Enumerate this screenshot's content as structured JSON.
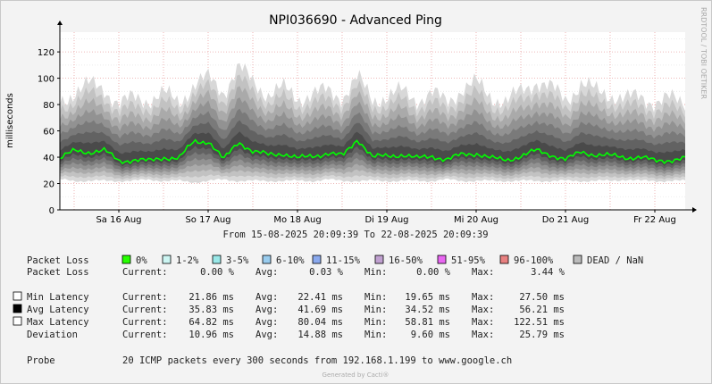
{
  "chart_data": {
    "type": "area",
    "title": "NPI036690 - Advanced Ping",
    "ylabel": "milliseconds",
    "ylim": [
      0,
      135
    ],
    "yticks": [
      0,
      20,
      40,
      60,
      80,
      100,
      120
    ],
    "xlim": [
      "2025-08-15 20:09:39",
      "2025-08-22 20:09:39"
    ],
    "xticks": [
      {
        "label": "Sa 16 Aug",
        "at": "2025-08-16 12:00"
      },
      {
        "label": "So 17 Aug",
        "at": "2025-08-17 12:00"
      },
      {
        "label": "Mo 18 Aug",
        "at": "2025-08-18 12:00"
      },
      {
        "label": "Di 19 Aug",
        "at": "2025-08-19 12:00"
      },
      {
        "label": "Mi 20 Aug",
        "at": "2025-08-20 12:00"
      },
      {
        "label": "Do 21 Aug",
        "at": "2025-08-21 12:00"
      },
      {
        "label": "Fr 22 Aug",
        "at": "2025-08-22 12:00"
      }
    ],
    "grid": true,
    "side_label": "RRDTOOL / TOBI OETIKER",
    "range_text": "From 15-08-2025 20:09:39 To 22-08-2025 20:09:39",
    "series": [
      {
        "name": "Avg Latency",
        "color": "#00ff00",
        "x": [
          "2025-08-15 20:00",
          "2025-08-16 00:00",
          "2025-08-16 04:00",
          "2025-08-16 08:00",
          "2025-08-16 12:00",
          "2025-08-16 16:00",
          "2025-08-16 20:00",
          "2025-08-17 00:00",
          "2025-08-17 04:00",
          "2025-08-17 08:00",
          "2025-08-17 12:00",
          "2025-08-17 16:00",
          "2025-08-17 20:00",
          "2025-08-18 00:00",
          "2025-08-18 04:00",
          "2025-08-18 08:00",
          "2025-08-18 12:00",
          "2025-08-18 16:00",
          "2025-08-18 20:00",
          "2025-08-19 00:00",
          "2025-08-19 04:00",
          "2025-08-19 08:00",
          "2025-08-19 12:00",
          "2025-08-19 16:00",
          "2025-08-19 20:00",
          "2025-08-20 00:00",
          "2025-08-20 04:00",
          "2025-08-20 08:00",
          "2025-08-20 12:00",
          "2025-08-20 16:00",
          "2025-08-20 20:00",
          "2025-08-21 00:00",
          "2025-08-21 04:00",
          "2025-08-21 08:00",
          "2025-08-21 12:00",
          "2025-08-21 16:00",
          "2025-08-21 20:00",
          "2025-08-22 00:00",
          "2025-08-22 04:00",
          "2025-08-22 08:00",
          "2025-08-22 12:00",
          "2025-08-22 16:00",
          "2025-08-22 20:00"
        ],
        "values": [
          39,
          45,
          44,
          45,
          37,
          38,
          37,
          40,
          39,
          52,
          52,
          38,
          52,
          44,
          42,
          43,
          39,
          41,
          43,
          41,
          54,
          40,
          41,
          42,
          39,
          41,
          38,
          42,
          43,
          39,
          38,
          41,
          45,
          42,
          38,
          44,
          42,
          41,
          40,
          40,
          37,
          38,
          39
        ]
      },
      {
        "name": "Min Latency",
        "color": "#ffffff",
        "values": [
          23,
          22,
          22,
          22,
          22,
          22,
          23,
          22,
          22,
          21,
          22,
          23,
          22,
          22,
          22,
          22,
          22,
          22,
          23,
          22,
          22,
          22,
          22,
          22,
          22,
          22,
          23,
          22,
          22,
          22,
          22,
          22,
          22,
          22,
          22,
          22,
          22,
          22,
          23,
          22,
          22,
          22,
          22
        ]
      },
      {
        "name": "Max Latency",
        "color": "#ffffff",
        "values": [
          82,
          90,
          95,
          92,
          80,
          85,
          84,
          88,
          82,
          95,
          100,
          90,
          108,
          97,
          88,
          92,
          85,
          88,
          90,
          86,
          100,
          84,
          86,
          90,
          84,
          88,
          82,
          92,
          96,
          86,
          82,
          90,
          98,
          92,
          84,
          96,
          90,
          88,
          84,
          86,
          82,
          84,
          82
        ]
      }
    ]
  },
  "legend": {
    "packet_loss_label": "Packet Loss",
    "loss_buckets": [
      {
        "label": "0%",
        "color": "#26ff00"
      },
      {
        "label": "1-2%",
        "color": "#ccf5f2"
      },
      {
        "label": "3-5%",
        "color": "#99e8e8"
      },
      {
        "label": "6-10%",
        "color": "#99ccee"
      },
      {
        "label": "11-15%",
        "color": "#8aa9ee"
      },
      {
        "label": "16-50%",
        "color": "#c0a0d0"
      },
      {
        "label": "51-95%",
        "color": "#e966f2"
      },
      {
        "label": "96-100%",
        "color": "#e88080"
      },
      {
        "label": "DEAD / NaN",
        "color": "#bbbbbb"
      }
    ]
  },
  "stats": [
    {
      "swatch": "",
      "name": "Packet Loss",
      "current": "0.00 %",
      "avg": "0.03 %",
      "min": "0.00 %",
      "max": "3.44 %"
    },
    {
      "swatch": "#ffffff",
      "name": "Min Latency",
      "current": "21.86 ms",
      "avg": "22.41 ms",
      "min": "19.65 ms",
      "max": "27.50 ms"
    },
    {
      "swatch": "#000000",
      "name": "Avg Latency",
      "current": "35.83 ms",
      "avg": "41.69 ms",
      "min": "34.52 ms",
      "max": "56.21 ms"
    },
    {
      "swatch": "#ffffff",
      "name": "Max Latency",
      "current": "64.82 ms",
      "avg": "80.04 ms",
      "min": "58.81 ms",
      "max": "122.51 ms"
    },
    {
      "swatch": "",
      "name": "Deviation",
      "current": "10.96 ms",
      "avg": "14.88 ms",
      "min": "9.60 ms",
      "max": "25.79 ms"
    }
  ],
  "stat_labels": {
    "current": "Current:",
    "avg": "Avg:",
    "min": "Min:",
    "max": "Max:"
  },
  "probe": {
    "label": "Probe",
    "text": "20 ICMP packets every 300 seconds from 192.168.1.199 to www.google.ch"
  },
  "footer": "Generated by Cacti®"
}
